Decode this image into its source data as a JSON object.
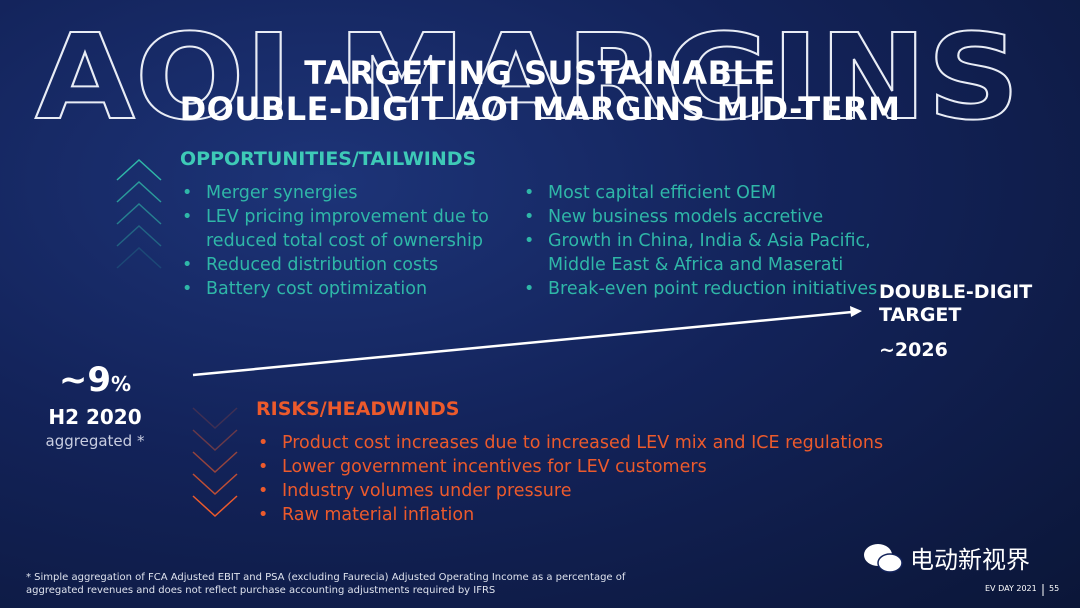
{
  "watermark": "AOI MARGINS",
  "title": [
    "TARGETING SUSTAINABLE",
    "DOUBLE-DIGIT AOI MARGINS MID-TERM"
  ],
  "opportunities": {
    "heading": "OPPORTUNITIES/TAILWINDS",
    "left": [
      "Merger synergies",
      "LEV pricing improvement due to reduced total cost of ownership",
      "Reduced distribution costs",
      "Battery cost optimization"
    ],
    "right": [
      "Most capital efficient OEM",
      "New business models accretive",
      "Growth in China, India & Asia Pacific, Middle East & Africa and Maserati",
      "Break-even point reduction initiatives"
    ]
  },
  "current": {
    "value": "~9",
    "unit": "%",
    "period": "H2 2020",
    "note": "aggregated *"
  },
  "target": {
    "label": "DOUBLE-DIGIT TARGET",
    "year": "~2026"
  },
  "risks": {
    "heading": "RISKS/HEADWINDS",
    "items": [
      "Product cost increases due to increased LEV mix and ICE regulations",
      "Lower government incentives for LEV customers",
      "Industry volumes under pressure",
      "Raw material inflation"
    ]
  },
  "footnote": "* Simple aggregation of FCA Adjusted EBIT and PSA (excluding Faurecia) Adjusted Operating Income as a percentage of aggregated revenues and does not reflect purchase accounting adjustments required by IFRS",
  "brand": "电动新视界",
  "footer": {
    "event": "EV DAY 2021",
    "page": "55"
  }
}
